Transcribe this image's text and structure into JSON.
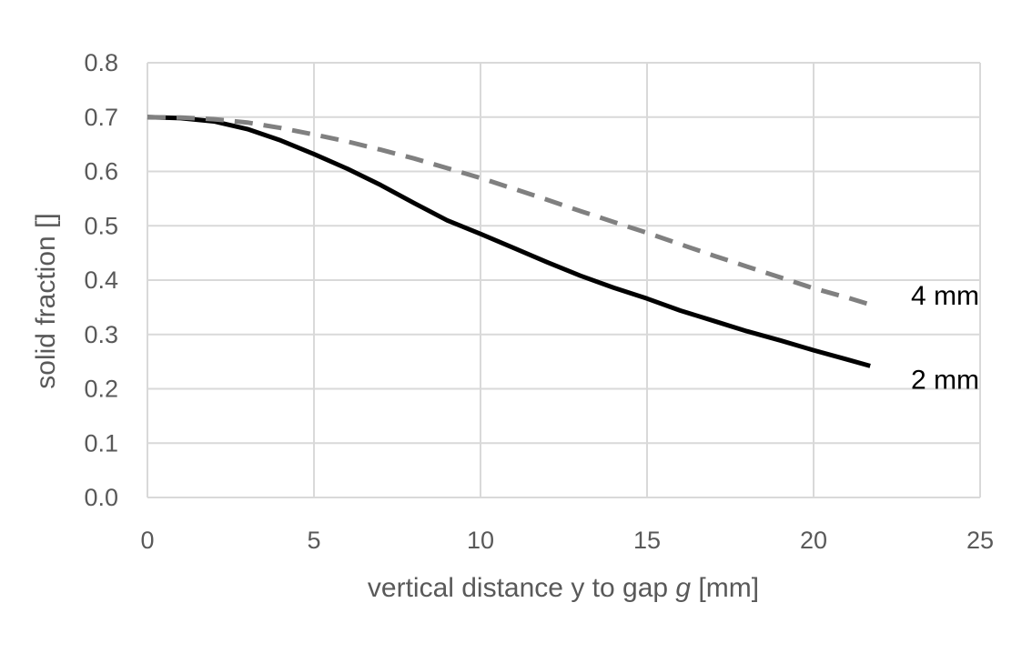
{
  "chart_data": {
    "type": "line",
    "title": "",
    "xlabel_parts": [
      "vertical distance y to gap ",
      "g",
      " [mm]"
    ],
    "ylabel": "solid fraction []",
    "xlim": [
      0,
      25
    ],
    "ylim": [
      0,
      0.8
    ],
    "xticks": [
      "0",
      "5",
      "10",
      "15",
      "20",
      "25"
    ],
    "yticks": [
      "0.0",
      "0.1",
      "0.2",
      "0.3",
      "0.4",
      "0.5",
      "0.6",
      "0.7",
      "0.8"
    ],
    "grid": true,
    "series": [
      {
        "name": "2 mm",
        "color": "#000000",
        "dash": "solid",
        "x": [
          0,
          1,
          2,
          3,
          4,
          5,
          6,
          7,
          8,
          9,
          10,
          11,
          12,
          13,
          14,
          15,
          16,
          17,
          18,
          19,
          20,
          21,
          21.7
        ],
        "y": [
          0.7,
          0.698,
          0.692,
          0.678,
          0.657,
          0.632,
          0.605,
          0.575,
          0.542,
          0.51,
          0.485,
          0.459,
          0.433,
          0.408,
          0.386,
          0.366,
          0.344,
          0.325,
          0.306,
          0.289,
          0.271,
          0.254,
          0.242
        ]
      },
      {
        "name": "4 mm",
        "color": "#808080",
        "dash": "dashed",
        "x": [
          0,
          1,
          2,
          3,
          4,
          5,
          6,
          7,
          8,
          9,
          10,
          11,
          12,
          13,
          14,
          15,
          16,
          17,
          18,
          19,
          20,
          21,
          21.7
        ],
        "y": [
          0.7,
          0.699,
          0.696,
          0.69,
          0.68,
          0.668,
          0.655,
          0.64,
          0.624,
          0.606,
          0.588,
          0.568,
          0.548,
          0.527,
          0.507,
          0.487,
          0.466,
          0.445,
          0.425,
          0.405,
          0.385,
          0.368,
          0.355
        ]
      }
    ]
  }
}
